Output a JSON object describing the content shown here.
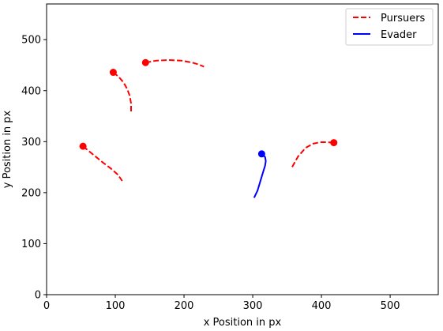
{
  "chart_data": {
    "type": "line",
    "title": "",
    "xlabel": "x Position in px",
    "ylabel": "y Position in px",
    "xlim": [
      0,
      570
    ],
    "ylim": [
      0,
      570
    ],
    "xticks": [
      0,
      100,
      200,
      300,
      400,
      500
    ],
    "yticks": [
      0,
      100,
      200,
      300,
      400,
      500
    ],
    "grid": false,
    "legend": {
      "position": "top-right",
      "entries": [
        {
          "label": "Pursuers",
          "style": "dashed",
          "color": "#ff0000"
        },
        {
          "label": "Evader",
          "style": "solid",
          "color": "#0000ff"
        }
      ]
    },
    "series": [
      {
        "role": "pursuer",
        "color": "#ff0000",
        "style": "dashed",
        "points": [
          [
            53,
            291
          ],
          [
            62,
            281
          ],
          [
            72,
            270
          ],
          [
            82,
            259
          ],
          [
            93,
            248
          ],
          [
            104,
            235
          ],
          [
            110,
            223
          ]
        ],
        "marker": [
          53,
          291
        ]
      },
      {
        "role": "pursuer",
        "color": "#ff0000",
        "style": "dashed",
        "points": [
          [
            97,
            436
          ],
          [
            105,
            427
          ],
          [
            112,
            416
          ],
          [
            117,
            404
          ],
          [
            121,
            390
          ],
          [
            123,
            375
          ],
          [
            123,
            356
          ]
        ],
        "marker": [
          97,
          436
        ]
      },
      {
        "role": "pursuer",
        "color": "#ff0000",
        "style": "dashed",
        "points": [
          [
            144,
            455
          ],
          [
            160,
            459
          ],
          [
            178,
            460
          ],
          [
            196,
            459
          ],
          [
            212,
            455
          ],
          [
            222,
            451
          ],
          [
            229,
            447
          ]
        ],
        "marker": [
          144,
          455
        ]
      },
      {
        "role": "pursuer",
        "color": "#ff0000",
        "style": "dashed",
        "points": [
          [
            418,
            298
          ],
          [
            408,
            299
          ],
          [
            398,
            299
          ],
          [
            388,
            296
          ],
          [
            377,
            288
          ],
          [
            366,
            271
          ],
          [
            356,
            247
          ]
        ],
        "marker": [
          418,
          298
        ]
      },
      {
        "role": "evader",
        "color": "#0000ff",
        "style": "solid",
        "points": [
          [
            313,
            276
          ],
          [
            318,
            270
          ],
          [
            319,
            262
          ],
          [
            318,
            253
          ],
          [
            315,
            240
          ],
          [
            311,
            222
          ],
          [
            307,
            204
          ],
          [
            302,
            190
          ]
        ],
        "marker": [
          313,
          276
        ]
      }
    ]
  }
}
